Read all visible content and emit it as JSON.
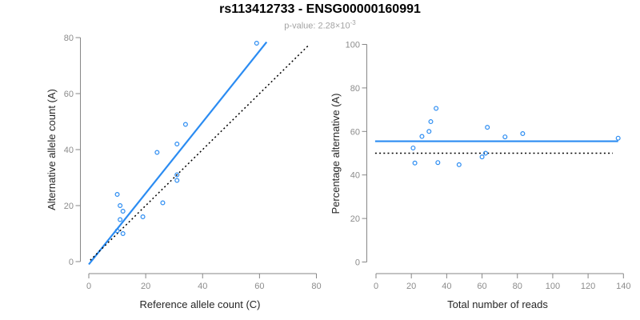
{
  "header": {
    "title": "rs113412733 - ENSG00000160991",
    "subtitle_main": "p-value: 2.28×10",
    "subtitle_exponent": "-3"
  },
  "colors": {
    "accent": "#2b8cf2",
    "line_black": "#000000",
    "axis_gray": "#878787",
    "tick_label_gray": "#8c8c8c",
    "axis_title": "#262626",
    "title": "#000000",
    "subtitle_gray": "#a3a3a3"
  },
  "chart_data": [
    {
      "type": "scatter",
      "name": "allele-count-plot",
      "xlabel": "Reference allele count (C)",
      "ylabel": "Alternative allele count (A)",
      "xlim": [
        0,
        80
      ],
      "ylim": [
        0,
        80
      ],
      "xticks": [
        0,
        20,
        40,
        60,
        80
      ],
      "yticks": [
        0,
        20,
        40,
        60,
        80
      ],
      "grid": false,
      "legend": false,
      "points": [
        [
          10,
          11
        ],
        [
          10,
          24
        ],
        [
          11,
          15
        ],
        [
          11,
          20
        ],
        [
          12,
          10
        ],
        [
          12,
          18
        ],
        [
          19,
          16
        ],
        [
          24,
          39
        ],
        [
          26,
          21
        ],
        [
          31,
          29
        ],
        [
          31,
          31
        ],
        [
          31,
          42
        ],
        [
          34,
          49
        ],
        [
          59,
          78
        ]
      ],
      "lines": [
        {
          "name": "fitted-line",
          "style": "solid",
          "color_key": "accent",
          "x": [
            0,
            62.5
          ],
          "y": [
            -1,
            78.4
          ]
        },
        {
          "name": "identity-line",
          "style": "dotted",
          "color_key": "line_black",
          "x": [
            0.5,
            77.5
          ],
          "y": [
            0.5,
            77.5
          ]
        }
      ]
    },
    {
      "type": "scatter",
      "name": "percentage-plot",
      "xlabel": "Total number of reads",
      "ylabel": "Percentage alternative (A)",
      "xlim": [
        0,
        140
      ],
      "ylim": [
        0,
        100
      ],
      "xticks": [
        0,
        20,
        40,
        60,
        80,
        100,
        120,
        140
      ],
      "yticks": [
        0,
        20,
        40,
        60,
        80,
        100
      ],
      "grid": false,
      "legend": false,
      "points": [
        [
          21,
          52.4
        ],
        [
          22,
          45.5
        ],
        [
          26,
          57.7
        ],
        [
          30,
          60
        ],
        [
          31,
          64.5
        ],
        [
          34,
          70.6
        ],
        [
          35,
          45.7
        ],
        [
          47,
          44.7
        ],
        [
          60,
          48.3
        ],
        [
          62,
          50
        ],
        [
          63,
          61.9
        ],
        [
          73,
          57.5
        ],
        [
          83,
          59
        ],
        [
          137,
          56.9
        ]
      ],
      "lines": [
        {
          "name": "mean-percentage-line",
          "style": "solid",
          "color_key": "accent",
          "x": [
            -0.5,
            137
          ],
          "y": [
            55.5,
            55.5
          ]
        },
        {
          "name": "fifty-percent-line",
          "style": "dotted",
          "color_key": "line_black",
          "x": [
            -0.5,
            134
          ],
          "y": [
            50,
            50
          ]
        }
      ]
    }
  ]
}
